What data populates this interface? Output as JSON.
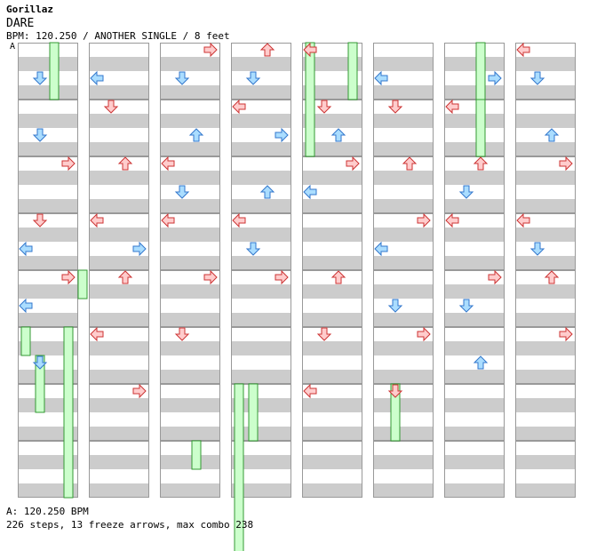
{
  "header": {
    "artist": "Gorillaz",
    "title": "DARE",
    "bpm_line": "BPM: 120.250 / ANOTHER SINGLE / 8 feet",
    "marker": "A"
  },
  "footer": {
    "bpm_note": "A: 120.250 BPM",
    "stats": "226 steps, 13 freeze arrows, max combo 238"
  },
  "chart": {
    "columns": 8,
    "measures_per_column": 8,
    "lanes": [
      "left",
      "down",
      "up",
      "right"
    ],
    "colors": {
      "stripe_gray": "#cccccc",
      "stripe_white": "#ffffff",
      "border": "#999999",
      "quarter_arrow_fill": "#ffcccc",
      "quarter_arrow_stroke": "#cc3333",
      "eighth_arrow_fill": "#aaddff",
      "eighth_arrow_stroke": "#3377cc",
      "freeze_fill": "#ccffcc",
      "freeze_stroke": "#339933"
    },
    "notes": [
      [
        0,
        0.25,
        1
      ],
      [
        0,
        0.75,
        1
      ],
      [
        0,
        1.0,
        3
      ],
      [
        0,
        1.5,
        1
      ],
      [
        0,
        1.75,
        0
      ],
      [
        0,
        2.0,
        3
      ],
      [
        0,
        2.25,
        0
      ],
      [
        0,
        2.75,
        1
      ],
      [
        1,
        0.25,
        0
      ],
      [
        1,
        0.5,
        1
      ],
      [
        1,
        1.0,
        2
      ],
      [
        1,
        1.5,
        0
      ],
      [
        1,
        1.75,
        3
      ],
      [
        1,
        2.0,
        2
      ],
      [
        1,
        2.5,
        0
      ],
      [
        1,
        3.0,
        3
      ],
      [
        2,
        0.0,
        3
      ],
      [
        2,
        0.25,
        1
      ],
      [
        2,
        0.75,
        2
      ],
      [
        2,
        1.0,
        0
      ],
      [
        2,
        1.25,
        1
      ],
      [
        2,
        1.5,
        0
      ],
      [
        2,
        2.0,
        3
      ],
      [
        2,
        2.5,
        1
      ],
      [
        3,
        0.0,
        2
      ],
      [
        3,
        0.25,
        1
      ],
      [
        3,
        0.5,
        0
      ],
      [
        3,
        0.75,
        3
      ],
      [
        3,
        1.25,
        2
      ],
      [
        3,
        1.5,
        0
      ],
      [
        3,
        1.75,
        1
      ],
      [
        3,
        2.0,
        3
      ],
      [
        4,
        0.0,
        0
      ],
      [
        4,
        0.5,
        1
      ],
      [
        4,
        0.75,
        2
      ],
      [
        4,
        1.0,
        3
      ],
      [
        4,
        1.25,
        0
      ],
      [
        4,
        2.0,
        2
      ],
      [
        4,
        2.5,
        1
      ],
      [
        4,
        3.0,
        0
      ],
      [
        5,
        0.25,
        0
      ],
      [
        5,
        0.5,
        1
      ],
      [
        5,
        1.0,
        2
      ],
      [
        5,
        1.5,
        3
      ],
      [
        5,
        1.75,
        0
      ],
      [
        5,
        2.25,
        1
      ],
      [
        5,
        2.5,
        3
      ],
      [
        5,
        3.0,
        1
      ],
      [
        6,
        0.25,
        3
      ],
      [
        6,
        0.5,
        0
      ],
      [
        6,
        1.0,
        2
      ],
      [
        6,
        1.25,
        1
      ],
      [
        6,
        1.5,
        0
      ],
      [
        6,
        2.0,
        3
      ],
      [
        6,
        2.25,
        1
      ],
      [
        6,
        2.75,
        2
      ],
      [
        7,
        0.0,
        0
      ],
      [
        7,
        0.25,
        1
      ],
      [
        7,
        0.75,
        2
      ],
      [
        7,
        1.0,
        3
      ],
      [
        7,
        1.5,
        0
      ],
      [
        7,
        1.75,
        1
      ],
      [
        7,
        2.0,
        2
      ],
      [
        7,
        2.5,
        3
      ]
    ],
    "freezes": [
      [
        0,
        0,
        2,
        0.0,
        1.0
      ],
      [
        0,
        4,
        4,
        0.0,
        0.5
      ],
      [
        0,
        5,
        0,
        0.0,
        0.5
      ],
      [
        0,
        5,
        1,
        0.5,
        1.0
      ],
      [
        0,
        5,
        3,
        0.0,
        3.0
      ],
      [
        3,
        5,
        0,
        1.0,
        3.0
      ],
      [
        3,
        6,
        1,
        0.0,
        1.0
      ],
      [
        4,
        0,
        0,
        0.0,
        2.0
      ],
      [
        4,
        0,
        3,
        0.0,
        1.0
      ],
      [
        5,
        6,
        1,
        0.0,
        1.0
      ],
      [
        6,
        0,
        2,
        0.0,
        1.0
      ],
      [
        6,
        1,
        2,
        0.0,
        1.0
      ],
      [
        2,
        7,
        2,
        0.0,
        0.5
      ]
    ]
  }
}
